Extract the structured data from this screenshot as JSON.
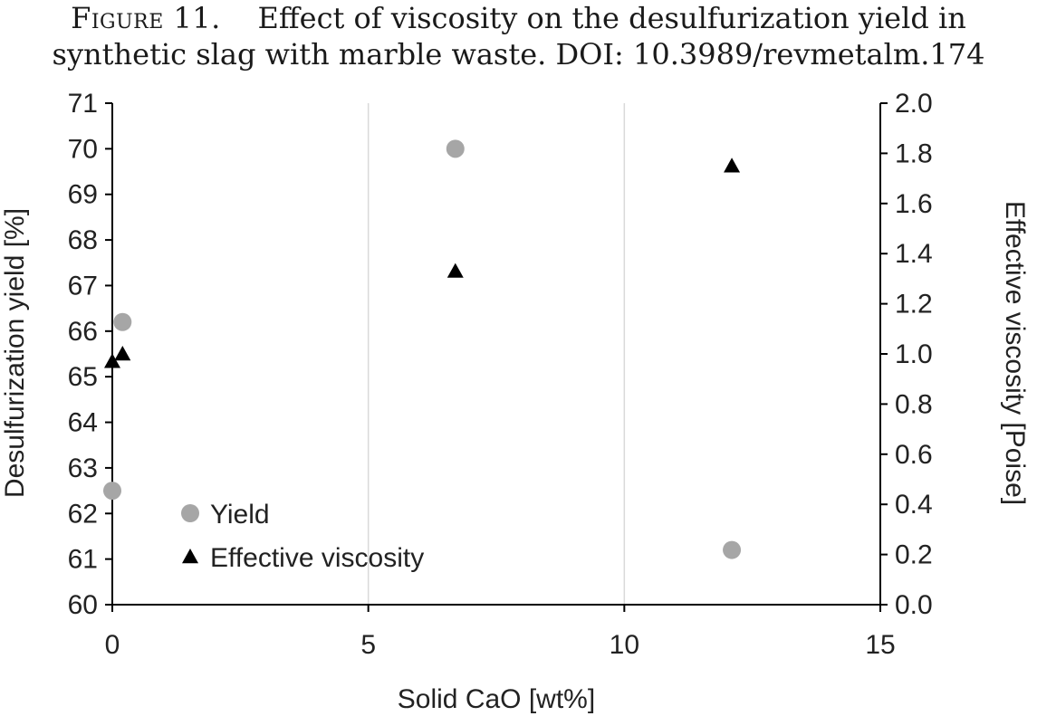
{
  "caption": {
    "figure_label": "Figure 11.",
    "line1": "Effect of viscosity on the desulfurization yield in",
    "line2": "synthetic slag with marble waste. DOI: 10.3989/revmetalm.174"
  },
  "chart_data": {
    "type": "scatter",
    "xlabel": "Solid CaO [wt%]",
    "ylabel": "Desulfurization yield [%]",
    "y2label": "Effective viscosity [Poise]",
    "xlim": [
      0,
      15
    ],
    "ylim": [
      60,
      71
    ],
    "y2lim": [
      0,
      2.0
    ],
    "xticks": [
      "0",
      "5",
      "10",
      "15"
    ],
    "yticks": [
      "60",
      "61",
      "62",
      "63",
      "64",
      "65",
      "66",
      "67",
      "68",
      "69",
      "70",
      "71"
    ],
    "y2ticks": [
      "0.0",
      "0.2",
      "0.4",
      "0.6",
      "0.8",
      "1.0",
      "1.2",
      "1.4",
      "1.6",
      "1.8",
      "2.0"
    ],
    "grid": "vertical",
    "legend": "bottom-left",
    "series": [
      {
        "name": "Yield",
        "axis": "left",
        "marker": "circle",
        "color": "#a6a6a6",
        "points": [
          [
            0,
            62.5
          ],
          [
            0.2,
            66.2
          ],
          [
            6.7,
            70.0
          ],
          [
            12.1,
            61.2
          ]
        ]
      },
      {
        "name": "Effective viscosity",
        "axis": "right",
        "marker": "triangle",
        "color": "#000000",
        "points": [
          [
            0,
            0.97
          ],
          [
            0.2,
            1.0
          ],
          [
            6.7,
            1.33
          ],
          [
            12.1,
            1.75
          ]
        ]
      }
    ]
  }
}
